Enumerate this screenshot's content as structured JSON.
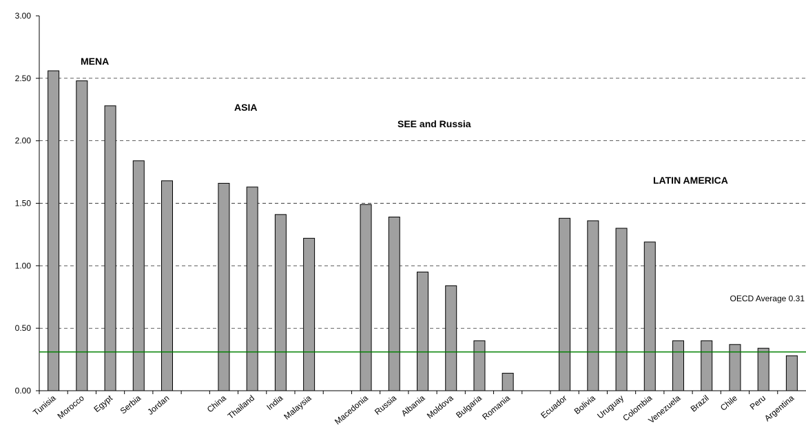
{
  "chart_data": {
    "type": "bar",
    "categories": [
      "Tunisia",
      "Morocco",
      "Egypt",
      "Serbia",
      "Jordan",
      null,
      "China",
      "Thailand",
      "India",
      "Malaysia",
      null,
      "Macedonia",
      "Russia",
      "Albania",
      "Moldova",
      "Bulgaria",
      "Romania",
      null,
      "Ecuador",
      "Bolivia",
      "Uruguay",
      "Colombia",
      "Venezuela",
      "Brazil",
      "Chile",
      "Peru",
      "Argentina"
    ],
    "values": [
      2.56,
      2.48,
      2.28,
      1.84,
      1.68,
      null,
      1.66,
      1.63,
      1.41,
      1.22,
      null,
      1.49,
      1.39,
      0.95,
      0.84,
      0.4,
      0.14,
      null,
      1.38,
      1.36,
      1.3,
      1.19,
      0.4,
      0.4,
      0.37,
      0.34,
      0.28
    ],
    "color": "#a0a0a0",
    "ylim": [
      0,
      3
    ],
    "yticks": [
      {
        "value": 0,
        "label": "0.00"
      },
      {
        "value": 0.5,
        "label": "0.50"
      },
      {
        "value": 1,
        "label": "1.00"
      },
      {
        "value": 1.5,
        "label": "1.50"
      },
      {
        "value": 2,
        "label": "2.00"
      },
      {
        "value": 2.5,
        "label": "2.50"
      },
      {
        "value": 3,
        "label": "3.00"
      }
    ],
    "grid": true,
    "reference_line": {
      "value": 0.31,
      "label": "OECD Average 0.31",
      "color": "#008000"
    },
    "annotations": [
      "MENA",
      "ASIA",
      "SEE and Russia",
      "LATIN AMERICA"
    ]
  }
}
